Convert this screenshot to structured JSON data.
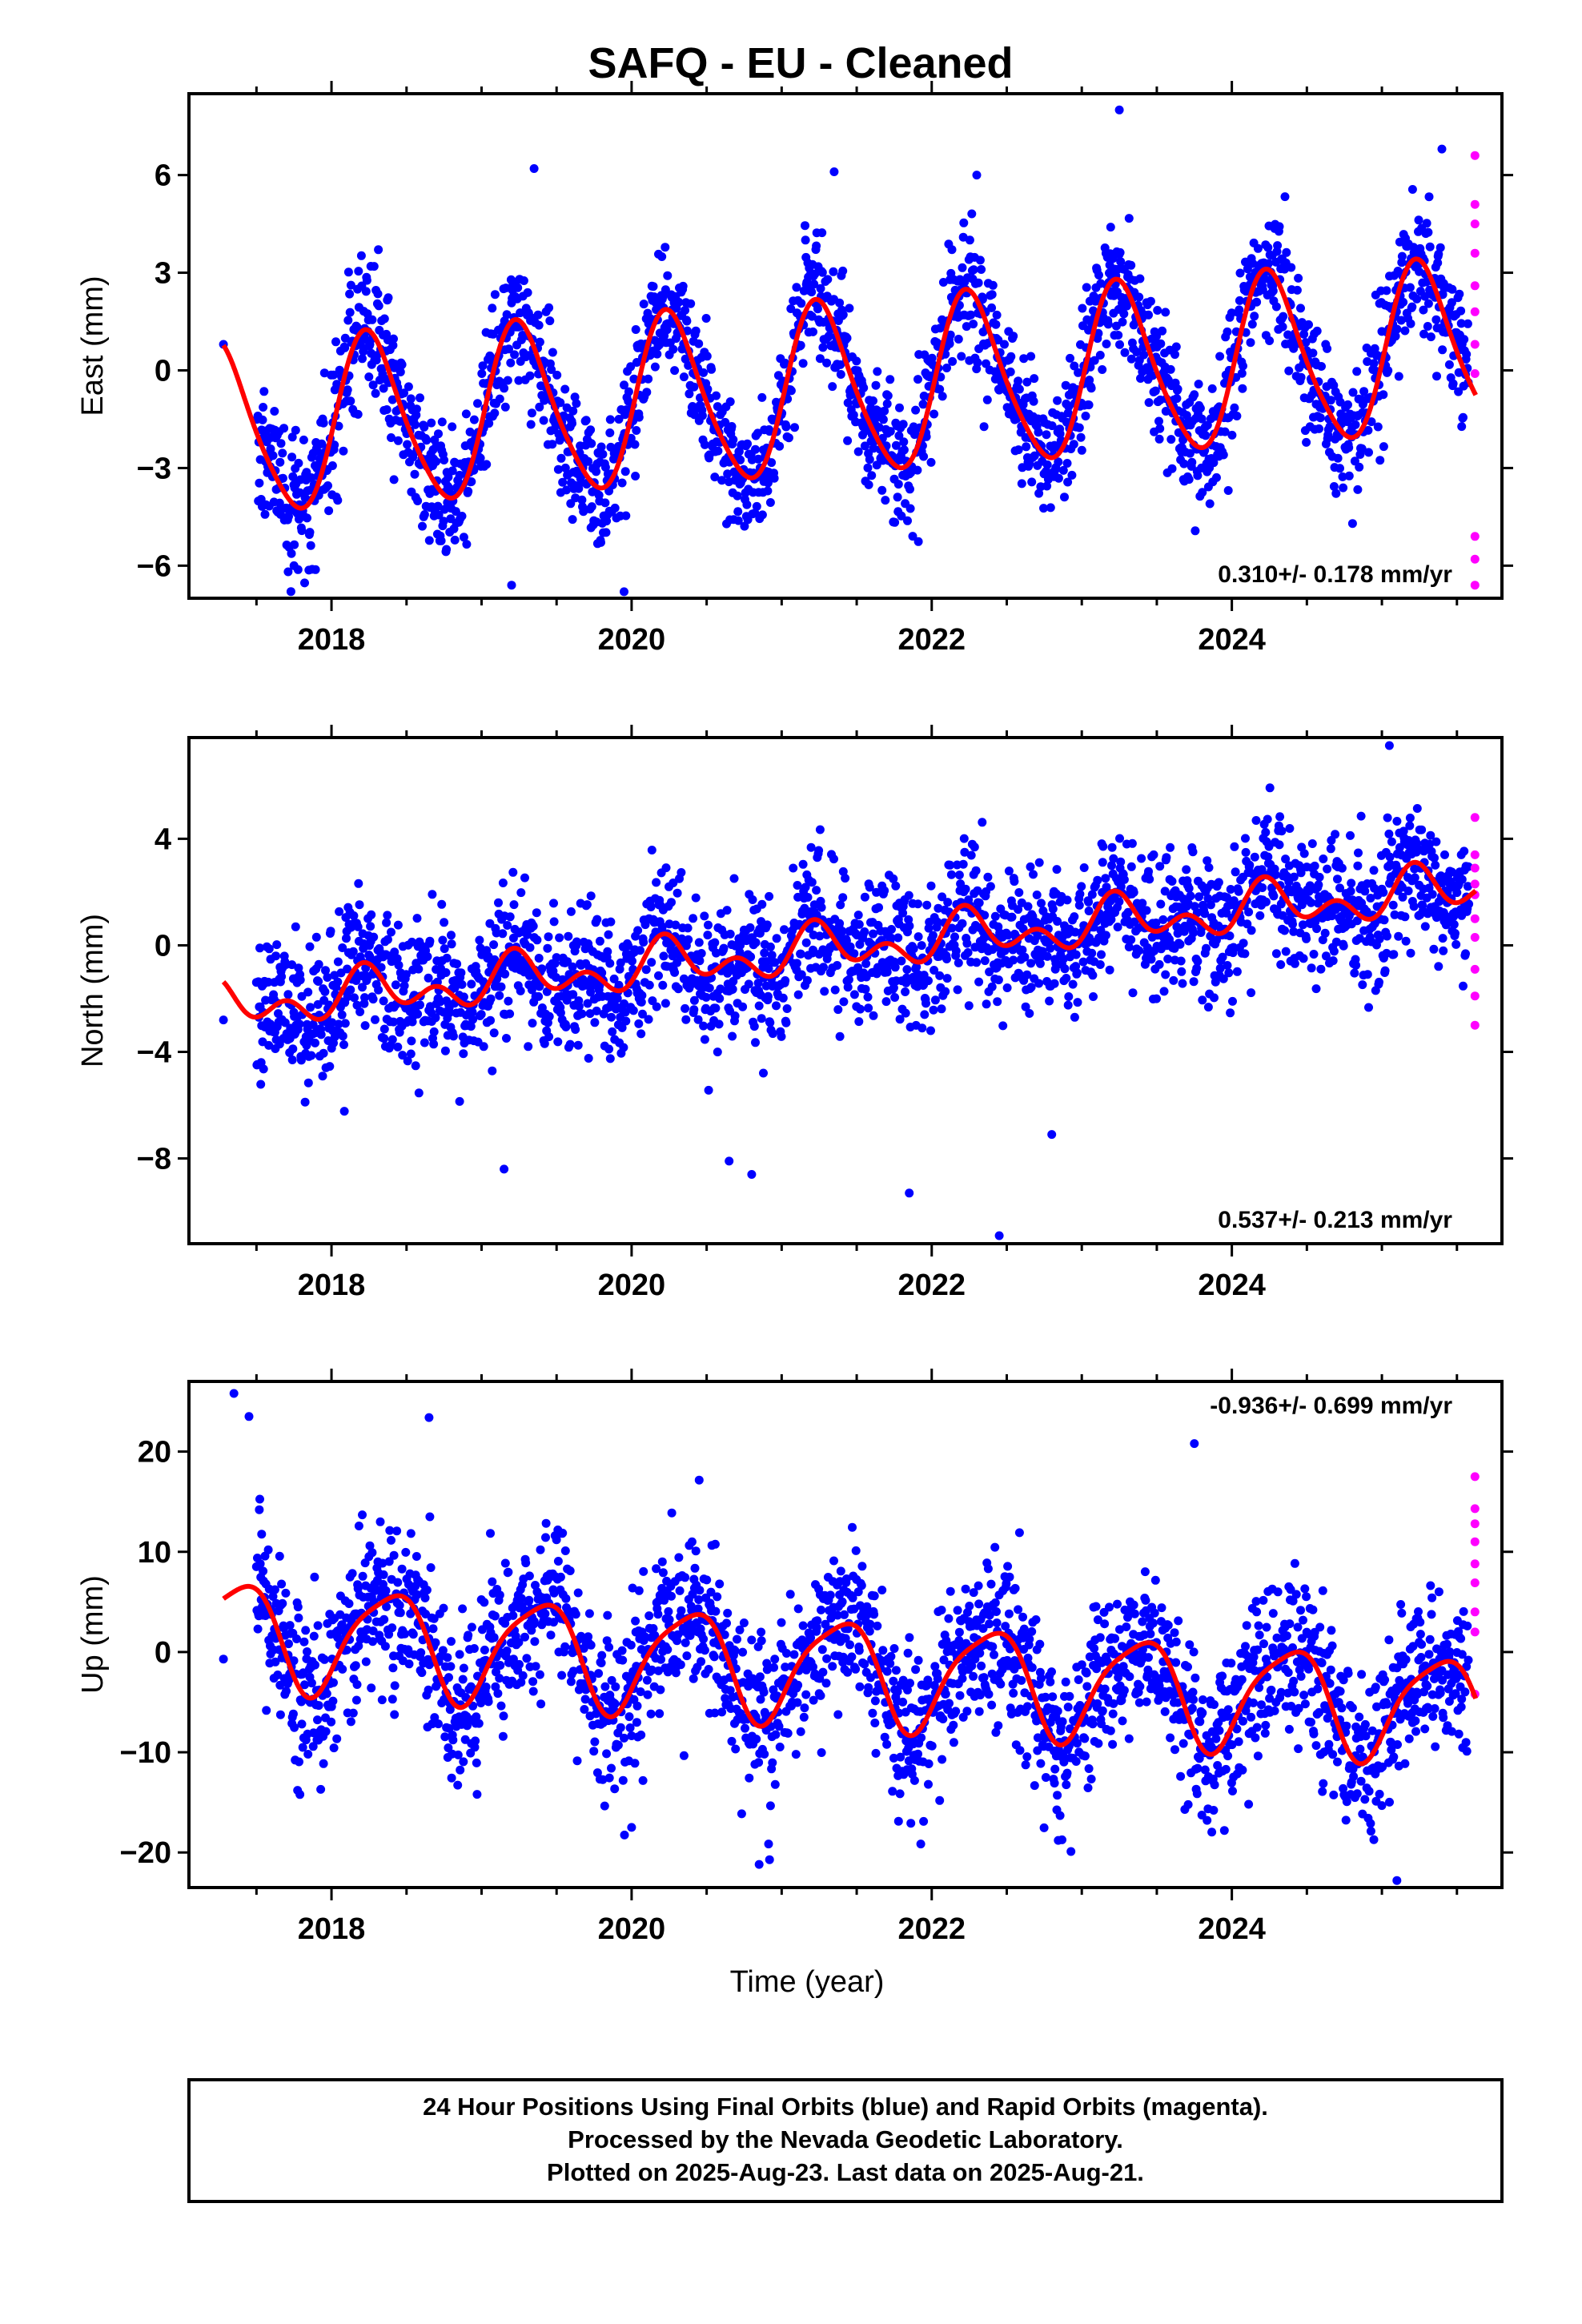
{
  "title": "SAFQ  - EU - Cleaned",
  "xlabel": "Time (year)",
  "footer": {
    "line1": "24 Hour Positions Using Final Orbits (blue) and Rapid Orbits (magenta).",
    "line2": "Processed by the Nevada Geodetic Laboratory.",
    "line3": "Plotted on 2025-Aug-23. Last data on 2025-Aug-21."
  },
  "colors": {
    "final_orbits": "#0000ff",
    "rapid_orbits": "#ff00ff",
    "model_fit": "#ff0000",
    "frame": "#000000"
  },
  "chart_data": [
    {
      "type": "scatter",
      "name": "east",
      "ylabel": "East (mm)",
      "xlim": [
        2017.05,
        2025.8
      ],
      "ylim": [
        -7.0,
        8.5
      ],
      "x_ticks": [
        2018,
        2020,
        2022,
        2024
      ],
      "x_tick_labels": [
        "2018",
        "2020",
        "2022",
        "2024"
      ],
      "y_ticks": [
        -6,
        -3,
        0,
        3,
        6
      ],
      "y_tick_labels": [
        "−6",
        "−3",
        "0",
        "3",
        "6"
      ],
      "rate_text": "0.310+/- 0.178 mm/yr",
      "rate_position": "bottom-right",
      "model": {
        "offset": -0.6,
        "rate": 0.31,
        "ref_year": 2021.4,
        "annual_cos": -0.1,
        "annual_sin": 2.6,
        "semi_cos": -0.2,
        "semi_sin": 0.3
      },
      "scatter_sd": 1.0,
      "first_point": [
        2017.28,
        0.8
      ],
      "rapid_points": [
        [
          2025.62,
          6.6
        ],
        [
          2025.62,
          5.1
        ],
        [
          2025.62,
          4.5
        ],
        [
          2025.62,
          3.6
        ],
        [
          2025.62,
          2.6
        ],
        [
          2025.62,
          1.8
        ],
        [
          2025.62,
          0.8
        ],
        [
          2025.62,
          -0.1
        ],
        [
          2025.62,
          -5.1
        ],
        [
          2025.62,
          -5.8
        ],
        [
          2025.62,
          -6.6
        ]
      ],
      "outliers": [
        [
          2017.75,
          -6.0
        ],
        [
          2019.2,
          -6.6
        ],
        [
          2019.95,
          -6.8
        ],
        [
          2023.25,
          8.0
        ],
        [
          2019.35,
          6.2
        ],
        [
          2021.35,
          6.1
        ],
        [
          2022.3,
          6.0
        ],
        [
          2025.4,
          6.8
        ]
      ]
    },
    {
      "type": "scatter",
      "name": "north",
      "ylabel": "North (mm)",
      "xlim": [
        2017.05,
        2025.8
      ],
      "ylim": [
        -11.2,
        7.8
      ],
      "x_ticks": [
        2018,
        2020,
        2022,
        2024
      ],
      "x_tick_labels": [
        "2018",
        "2020",
        "2022",
        "2024"
      ],
      "y_ticks": [
        -8,
        -4,
        0,
        4
      ],
      "y_tick_labels": [
        "−8",
        "−4",
        "0",
        "4"
      ],
      "rate_text": "0.537+/- 0.213 mm/yr",
      "rate_position": "bottom-right",
      "model": {
        "offset": -0.1,
        "rate": 0.537,
        "ref_year": 2021.4,
        "annual_cos": 0.0,
        "annual_sin": 0.6,
        "semi_cos": -0.5,
        "semi_sin": 0.3
      },
      "scatter_sd": 1.3,
      "first_point": [
        2017.28,
        -2.8
      ],
      "rapid_points": [
        [
          2025.62,
          4.8
        ],
        [
          2025.62,
          3.4
        ],
        [
          2025.62,
          2.9
        ],
        [
          2025.62,
          2.3
        ],
        [
          2025.62,
          1.9
        ],
        [
          2025.62,
          1.0
        ],
        [
          2025.62,
          0.3
        ],
        [
          2025.62,
          -0.9
        ],
        [
          2025.62,
          -1.9
        ],
        [
          2025.62,
          -3.0
        ]
      ],
      "outliers": [
        [
          2021.85,
          -9.3
        ],
        [
          2022.45,
          -10.9
        ],
        [
          2020.8,
          -8.6
        ],
        [
          2019.15,
          -8.4
        ],
        [
          2025.05,
          7.5
        ],
        [
          2020.65,
          -8.1
        ],
        [
          2022.8,
          -7.1
        ]
      ]
    },
    {
      "type": "scatter",
      "name": "up",
      "ylabel": "Up (mm)",
      "xlim": [
        2017.05,
        2025.8
      ],
      "ylim": [
        -23.5,
        27.0
      ],
      "x_ticks": [
        2018,
        2020,
        2022,
        2024
      ],
      "x_tick_labels": [
        "2018",
        "2020",
        "2022",
        "2024"
      ],
      "y_ticks": [
        -20,
        -10,
        0,
        10,
        20
      ],
      "y_tick_labels": [
        "−20",
        "−10",
        "0",
        "10",
        "20"
      ],
      "rate_text": "-0.936+/- 0.699 mm/yr",
      "rate_position": "top-right",
      "model": {
        "offset": -1.8,
        "rate": -0.936,
        "ref_year": 2021.4,
        "annual_cos": -3.8,
        "annual_sin": 3.5,
        "semi_cos": 0.6,
        "semi_sin": 0.9
      },
      "scatter_sd": 4.0,
      "first_point": [
        2017.28,
        -0.7
      ],
      "rapid_points": [
        [
          2025.62,
          17.5
        ],
        [
          2025.62,
          14.3
        ],
        [
          2025.62,
          12.8
        ],
        [
          2025.62,
          11.0
        ],
        [
          2025.62,
          8.8
        ],
        [
          2025.62,
          6.9
        ],
        [
          2025.62,
          4.0
        ],
        [
          2025.62,
          2.0
        ],
        [
          2025.62,
          -4.2
        ]
      ],
      "outliers": [
        [
          2017.35,
          25.8
        ],
        [
          2017.45,
          23.5
        ],
        [
          2018.65,
          23.4
        ],
        [
          2023.75,
          20.8
        ],
        [
          2025.1,
          -22.8
        ],
        [
          2020.0,
          -17.5
        ],
        [
          2023.95,
          -17.8
        ]
      ]
    }
  ]
}
